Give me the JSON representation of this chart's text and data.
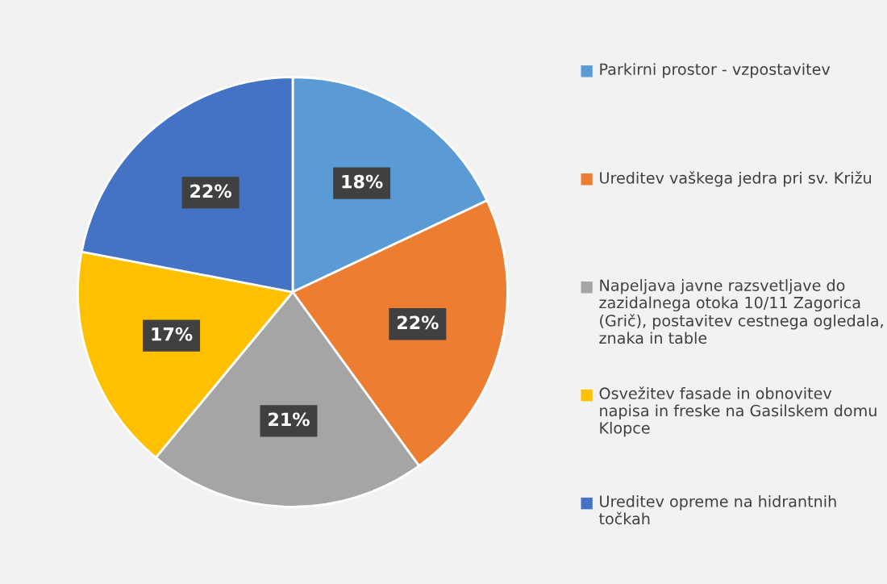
{
  "chart_data": {
    "type": "pie",
    "categories": [
      "Parkirni prostor - vzpostavitev",
      "Ureditev vaškega jedra pri sv. Križu",
      "Napeljava javne razsvetljave do zazidalnega otoka 10/11 Zagorica (Grič), postavitev cestnega ogledala, znaka in table",
      "Osvežitev fasade in obnovitev napisa in freske na Gasilskem domu Klopce",
      "Ureditev opreme na hidrantnih točkah"
    ],
    "values": [
      18,
      22,
      21,
      17,
      22
    ],
    "colors": [
      "#5b9bd5",
      "#ed7d31",
      "#a5a5a5",
      "#ffc000",
      "#4472c4"
    ],
    "value_labels": [
      "18%",
      "22%",
      "21%",
      "17%",
      "22%"
    ],
    "legend": "right"
  }
}
